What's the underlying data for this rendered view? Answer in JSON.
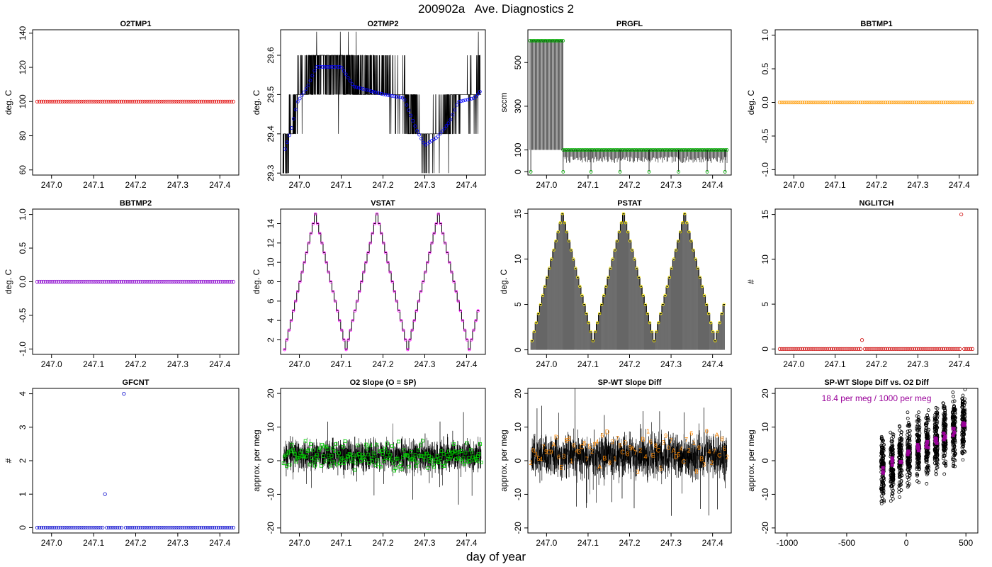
{
  "figure": {
    "title": "200902a   Ave. Diagnostics 2",
    "xlabel": "day of year"
  },
  "chart_data": [
    {
      "id": "p1",
      "type": "scatter",
      "title": "O2TMP1",
      "ylabel": "deg. C",
      "xlim": [
        246.955,
        247.445
      ],
      "ylim": [
        57,
        142
      ],
      "xticks": [
        247.0,
        247.1,
        247.2,
        247.3,
        247.4
      ],
      "xtick_labels": [
        "247.0",
        "247.1",
        "247.2",
        "247.3",
        "247.4"
      ],
      "yticks": [
        60,
        80,
        100,
        120,
        140
      ],
      "ytick_labels": [
        "60",
        "80",
        "100",
        "120",
        "140"
      ],
      "point_color": "#e00000",
      "series": [
        {
          "x": {
            "start": 246.966,
            "end": 247.432,
            "n": 94
          },
          "y_const": 100
        }
      ]
    },
    {
      "id": "p2",
      "type": "line",
      "title": "O2TMP2",
      "ylabel": "deg. C",
      "xlim": [
        246.955,
        247.445
      ],
      "ylim": [
        29.295,
        29.665
      ],
      "xticks": [
        247.0,
        247.1,
        247.2,
        247.3,
        247.4
      ],
      "xtick_labels": [
        "247.0",
        "247.1",
        "247.2",
        "247.3",
        "247.4"
      ],
      "yticks": [
        29.3,
        29.4,
        29.5,
        29.6
      ],
      "ytick_labels": [
        "29.3",
        "29.4",
        "29.5",
        "29.6"
      ],
      "line_color": "#000000",
      "point_color": "#0000ff",
      "knots": [
        [
          246.96,
          29.35
        ],
        [
          246.98,
          29.42
        ],
        [
          246.995,
          29.49
        ],
        [
          247.02,
          29.53
        ],
        [
          247.04,
          29.58
        ],
        [
          247.1,
          29.58
        ],
        [
          247.13,
          29.53
        ],
        [
          247.2,
          29.51
        ],
        [
          247.25,
          29.5
        ],
        [
          247.28,
          29.42
        ],
        [
          247.3,
          29.38
        ],
        [
          247.33,
          29.4
        ],
        [
          247.36,
          29.44
        ],
        [
          247.38,
          29.49
        ],
        [
          247.42,
          29.5
        ],
        [
          247.435,
          29.52
        ]
      ],
      "envelope": {
        "lo": 29.3,
        "hi": 29.66
      }
    },
    {
      "id": "p3",
      "type": "line",
      "title": "PRGFL",
      "ylabel": "sccm",
      "xlim": [
        246.955,
        247.445
      ],
      "ylim": [
        -15,
        650
      ],
      "xticks": [
        247.0,
        247.1,
        247.2,
        247.3,
        247.4
      ],
      "xtick_labels": [
        "247.0",
        "247.1",
        "247.2",
        "247.3",
        "247.4"
      ],
      "yticks": [
        0,
        100,
        300,
        500
      ],
      "ytick_labels": [
        "0",
        "100",
        "300",
        "500"
      ],
      "line_color": "#000000",
      "point_color": "#00aa00",
      "segments": [
        {
          "x_start": 246.96,
          "x_end": 247.04,
          "value": 600
        },
        {
          "x_start": 247.04,
          "x_end": 247.435,
          "value": 100
        }
      ],
      "dropouts": [
        246.962,
        247.04,
        247.107,
        247.177,
        247.247,
        247.318,
        247.387,
        247.43
      ]
    },
    {
      "id": "p4",
      "type": "scatter",
      "title": "BBTMP1",
      "ylabel": "deg. C",
      "xlim": [
        246.955,
        247.445
      ],
      "ylim": [
        -1.08,
        1.08
      ],
      "xticks": [
        247.0,
        247.1,
        247.2,
        247.3,
        247.4
      ],
      "xtick_labels": [
        "247.0",
        "247.1",
        "247.2",
        "247.3",
        "247.4"
      ],
      "yticks": [
        -1.0,
        -0.5,
        0.0,
        0.5,
        1.0
      ],
      "ytick_labels": [
        "-1.0",
        "-0.5",
        "0.0",
        "0.5",
        "1.0"
      ],
      "point_color": "#ff9900",
      "series": [
        {
          "x": {
            "start": 246.966,
            "end": 247.432,
            "n": 94
          },
          "y_const": 0
        }
      ]
    },
    {
      "id": "p5",
      "type": "scatter",
      "title": "BBTMP2",
      "ylabel": "deg. C",
      "xlim": [
        246.955,
        247.445
      ],
      "ylim": [
        -1.08,
        1.08
      ],
      "xticks": [
        247.0,
        247.1,
        247.2,
        247.3,
        247.4
      ],
      "xtick_labels": [
        "247.0",
        "247.1",
        "247.2",
        "247.3",
        "247.4"
      ],
      "yticks": [
        -1.0,
        -0.5,
        0.0,
        0.5,
        1.0
      ],
      "ytick_labels": [
        "-1.0",
        "-0.5",
        "0.0",
        "0.5",
        "1.0"
      ],
      "point_color": "#8800cc",
      "series": [
        {
          "x": {
            "start": 246.966,
            "end": 247.432,
            "n": 94
          },
          "y_const": 0
        }
      ]
    },
    {
      "id": "p6",
      "type": "line",
      "title": "VSTAT",
      "ylabel": "deg. C",
      "xlim": [
        246.955,
        247.445
      ],
      "ylim": [
        0.5,
        15.5
      ],
      "xticks": [
        247.0,
        247.1,
        247.2,
        247.3,
        247.4
      ],
      "xtick_labels": [
        "247.0",
        "247.1",
        "247.2",
        "247.3",
        "247.4"
      ],
      "yticks": [
        2,
        4,
        6,
        8,
        10,
        12,
        14
      ],
      "ytick_labels": [
        "2",
        "4",
        "6",
        "8",
        "10",
        "12",
        "14"
      ],
      "line_color": "#000000",
      "point_color": "#ff00ff",
      "triangle": {
        "x_start": 246.962,
        "step": 0.00526,
        "count": 89,
        "min": 1,
        "max": 15
      }
    },
    {
      "id": "p7",
      "type": "line",
      "title": "PSTAT",
      "ylabel": "deg. C",
      "xlim": [
        246.955,
        247.445
      ],
      "ylim": [
        -0.5,
        15.5
      ],
      "xticks": [
        247.0,
        247.1,
        247.2,
        247.3,
        247.4
      ],
      "xtick_labels": [
        "247.0",
        "247.1",
        "247.2",
        "247.3",
        "247.4"
      ],
      "yticks": [
        0,
        5,
        10,
        15
      ],
      "ytick_labels": [
        "0",
        "5",
        "10",
        "15"
      ],
      "line_color": "#000000",
      "point_color": "#ffee00",
      "triangle": {
        "x_start": 246.962,
        "step": 0.00526,
        "count": 89,
        "min": 1,
        "max": 15,
        "drop_to": 0
      }
    },
    {
      "id": "p8",
      "type": "scatter",
      "title": "NGLITCH",
      "ylabel": "#",
      "xlim": [
        246.955,
        247.445
      ],
      "ylim": [
        -0.6,
        15.6
      ],
      "xticks": [
        247.0,
        247.1,
        247.2,
        247.3,
        247.4
      ],
      "xtick_labels": [
        "247.0",
        "247.1",
        "247.2",
        "247.3",
        "247.4"
      ],
      "yticks": [
        0,
        5,
        10,
        15
      ],
      "ytick_labels": [
        "0",
        "5",
        "10",
        "15"
      ],
      "point_color": "#cc0000",
      "series": [
        {
          "x": {
            "start": 246.966,
            "end": 247.432,
            "n": 94
          },
          "y_const": 0,
          "outliers": [
            [
              247.165,
              1
            ],
            [
              247.405,
              15
            ]
          ],
          "gaps": [
            247.165,
            247.405
          ]
        }
      ]
    },
    {
      "id": "p9",
      "type": "scatter",
      "title": "GFCNT",
      "ylabel": "#",
      "xlim": [
        246.955,
        247.445
      ],
      "ylim": [
        -0.16,
        4.16
      ],
      "xticks": [
        247.0,
        247.1,
        247.2,
        247.3,
        247.4
      ],
      "xtick_labels": [
        "247.0",
        "247.1",
        "247.2",
        "247.3",
        "247.4"
      ],
      "yticks": [
        0,
        1,
        2,
        3,
        4
      ],
      "ytick_labels": [
        "0",
        "1",
        "2",
        "3",
        "4"
      ],
      "point_color": "#0000cc",
      "series": [
        {
          "x": {
            "start": 246.966,
            "end": 247.432,
            "n": 94
          },
          "y_const": 0,
          "outliers": [
            [
              247.127,
              1
            ],
            [
              247.172,
              4
            ]
          ],
          "gaps": [
            247.127,
            247.172
          ]
        }
      ]
    },
    {
      "id": "p10",
      "type": "line",
      "title": "O2 Slope (O = SP)",
      "ylabel": "approx. per meg",
      "xlim": [
        246.955,
        247.445
      ],
      "ylim": [
        -21.5,
        21.5
      ],
      "xticks": [
        247.0,
        247.1,
        247.2,
        247.3,
        247.4
      ],
      "xtick_labels": [
        "247.0",
        "247.1",
        "247.2",
        "247.3",
        "247.4"
      ],
      "yticks": [
        -20,
        -10,
        0,
        10,
        20
      ],
      "ytick_labels": [
        "-20",
        "-10",
        "0",
        "10",
        "20"
      ],
      "line_color": "#000000",
      "point_color": "#00cc00",
      "noise": {
        "center": 1.5,
        "amp": 4.5,
        "spike": 16,
        "n": 2200,
        "seed": 11
      },
      "markers": {
        "n": 190,
        "center": 1.5,
        "amp": 3
      }
    },
    {
      "id": "p11",
      "type": "line",
      "title": "SP-WT Slope Diff",
      "ylabel": "approx. per meg",
      "xlim": [
        246.955,
        247.445
      ],
      "ylim": [
        -21.5,
        21.5
      ],
      "xticks": [
        247.0,
        247.1,
        247.2,
        247.3,
        247.4
      ],
      "xtick_labels": [
        "247.0",
        "247.1",
        "247.2",
        "247.3",
        "247.4"
      ],
      "yticks": [
        -20,
        -10,
        0,
        10,
        20
      ],
      "ytick_labels": [
        "-20",
        "-10",
        "0",
        "10",
        "20"
      ],
      "line_color": "#000000",
      "label_color": "#ff8800",
      "noise": {
        "center": 1.5,
        "amp": 6,
        "spike": 20,
        "n": 2200,
        "seed": 23
      },
      "digit_labels": [
        "2",
        "0",
        "3",
        "5",
        "4",
        "7",
        "9",
        "C",
        "9",
        "A",
        "D",
        "6",
        "E",
        "3",
        "B",
        "8",
        "1",
        "6",
        "4",
        "3",
        "C",
        "8",
        "7",
        "5",
        "2",
        "9",
        "4",
        "A",
        "6",
        "B",
        "D",
        "8",
        "3",
        "1",
        "7",
        "5",
        "C",
        "0",
        "8",
        "9",
        "A",
        "7",
        "3",
        "2",
        "B",
        "4",
        "1",
        "6",
        "E",
        "8",
        "C",
        "5",
        "3",
        "9",
        "0",
        "7",
        "A",
        "D",
        "5",
        "4",
        "C",
        "7",
        "2",
        "6",
        "1",
        "8",
        "9",
        "B",
        "3",
        "0",
        "4",
        "2",
        "7",
        "A",
        "C",
        "8",
        "6",
        "2"
      ]
    },
    {
      "id": "p12",
      "type": "scatter",
      "title": "SP-WT Slope Diff vs. O2 Diff",
      "ylabel": "approx. per meg",
      "annotation": "18.4 per meg / 1000 per meg",
      "annotation_color": "#990099",
      "xlim": [
        -1100,
        600
      ],
      "ylim": [
        -21.5,
        21.5
      ],
      "xticks": [
        -1000,
        -500,
        0,
        500
      ],
      "xtick_labels": [
        "-1000",
        "-500",
        "0",
        "500"
      ],
      "yticks": [
        -20,
        -10,
        0,
        10,
        20
      ],
      "ytick_labels": [
        "-20",
        "-10",
        "0",
        "10",
        "20"
      ],
      "point_color": "#000000",
      "mean_color": "#990099",
      "clusters": [
        -200,
        -120,
        -50,
        20,
        100,
        175,
        250,
        320,
        400,
        480
      ],
      "slope": 0.0184,
      "intercept": 1.5
    }
  ]
}
